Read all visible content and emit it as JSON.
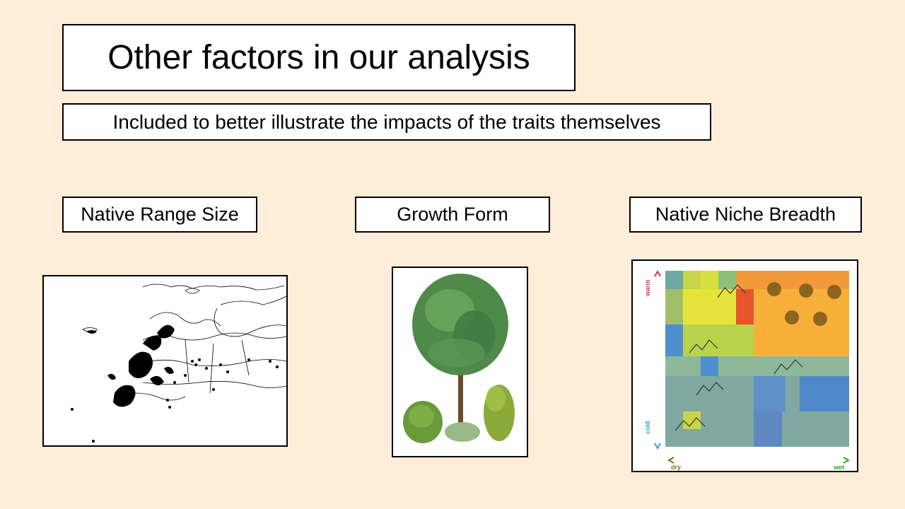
{
  "slide": {
    "title": "Other factors in our analysis",
    "subtitle": "Included to better illustrate the impacts of the traits themselves"
  },
  "labels": {
    "range": "Native Range Size",
    "growth": "Growth Form",
    "niche": "Native Niche Breadth"
  },
  "niche_figure": {
    "y_axis_top": "warm",
    "y_axis_bottom": "cold",
    "x_axis_left": "dry",
    "x_axis_right": "wet",
    "colors": {
      "warm": "#d63a4a",
      "cold": "#3a9ad9",
      "dry": "#8a6a1a",
      "wet": "#2ca82c"
    }
  },
  "colors": {
    "background": "#fdedd9",
    "box_fill": "#ffffff",
    "box_border": "#000000"
  }
}
